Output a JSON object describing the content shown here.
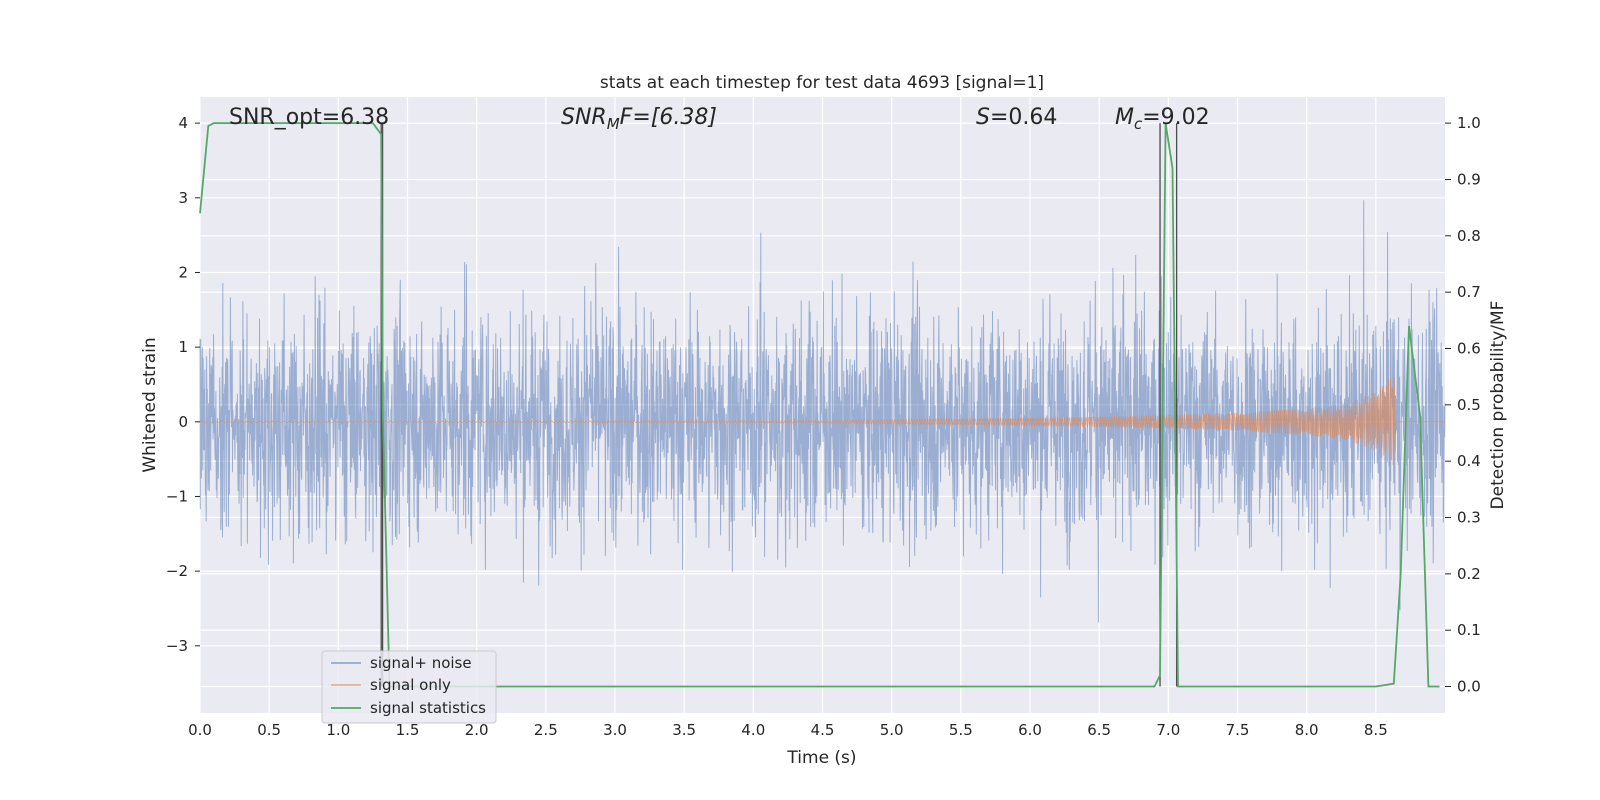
{
  "chart_data": {
    "type": "line",
    "title": "stats at each timestep for test data 4693 [signal=1]",
    "xlabel": "Time (s)",
    "ylabel_left": "Whitened strain",
    "ylabel_right": "Detection probability/MF",
    "xlim": [
      0.0,
      9.0
    ],
    "ylim_left": [
      -3.9,
      4.35
    ],
    "ylim_right": [
      -0.047,
      1.0464
    ],
    "x_ticks": [
      "0.0",
      "0.5",
      "1.0",
      "1.5",
      "2.0",
      "2.5",
      "3.0",
      "3.5",
      "4.0",
      "4.5",
      "5.0",
      "5.5",
      "6.0",
      "6.5",
      "7.0",
      "7.5",
      "8.0",
      "8.5"
    ],
    "y_ticks_left": [
      "4",
      "3",
      "2",
      "1",
      "0",
      "−1",
      "−2",
      "−3"
    ],
    "y_ticks_right": [
      "1.0",
      "0.9",
      "0.8",
      "0.7",
      "0.6",
      "0.5",
      "0.4",
      "0.3",
      "0.2",
      "0.1",
      "0.0"
    ],
    "grid": true,
    "legend_placement": "lower-left",
    "annotations": {
      "snr_opt": "SNR_opt=6.38",
      "snr_mf_base": "SNR",
      "snr_mf_sub": "M",
      "snr_mf_rest": "F=[6.38]",
      "s_base": "S",
      "s_rest": "=0.64",
      "mc_base": "M",
      "mc_sub": "c",
      "mc_rest": "=9.02"
    },
    "vertical_markers": [
      1.31,
      1.32,
      6.94,
      7.06
    ],
    "series": [
      {
        "name": "signal+ noise",
        "color": "#4c72b0",
        "description_stats": {
          "typical_range": [
            -2.2,
            2.3
          ],
          "peak_max": 4.0,
          "peak_min": -3.6
        }
      },
      {
        "name": "signal only",
        "color": "#dd8452",
        "envelope": {
          "x": [
            0.0,
            4.5,
            5.5,
            6.5,
            7.5,
            8.0,
            8.3,
            8.5,
            8.55,
            8.6,
            8.63,
            8.64
          ],
          "amp": [
            0.005,
            0.015,
            0.04,
            0.07,
            0.12,
            0.18,
            0.25,
            0.4,
            0.5,
            0.6,
            0.7,
            0.4
          ]
        }
      },
      {
        "name": "signal statistics",
        "color": "#55a868",
        "x": [
          0.0,
          0.06,
          0.1,
          0.2,
          0.5,
          1.0,
          1.25,
          1.31,
          1.32,
          1.37,
          1.45,
          2.0,
          4.0,
          6.0,
          6.9,
          6.94,
          6.98,
          7.03,
          7.07,
          7.1,
          7.5,
          8.0,
          8.5,
          8.63,
          8.68,
          8.74,
          8.82,
          8.88,
          8.96
        ],
        "y": [
          0.84,
          0.995,
          1.0,
          1.0,
          1.0,
          1.0,
          1.0,
          0.98,
          0.5,
          0.0,
          0.0,
          0.0,
          0.0,
          0.0,
          0.0,
          0.02,
          1.0,
          0.92,
          0.0,
          0.0,
          0.0,
          0.0,
          0.0,
          0.005,
          0.2,
          0.64,
          0.48,
          0.0,
          0.0
        ]
      }
    ]
  }
}
